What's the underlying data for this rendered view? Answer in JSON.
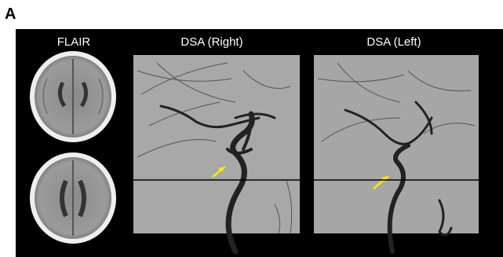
{
  "panel_label": "A",
  "images": [
    {
      "label": "FLAIR"
    },
    {
      "label": "DSA (Right)"
    },
    {
      "label": "DSA (Left)"
    }
  ]
}
